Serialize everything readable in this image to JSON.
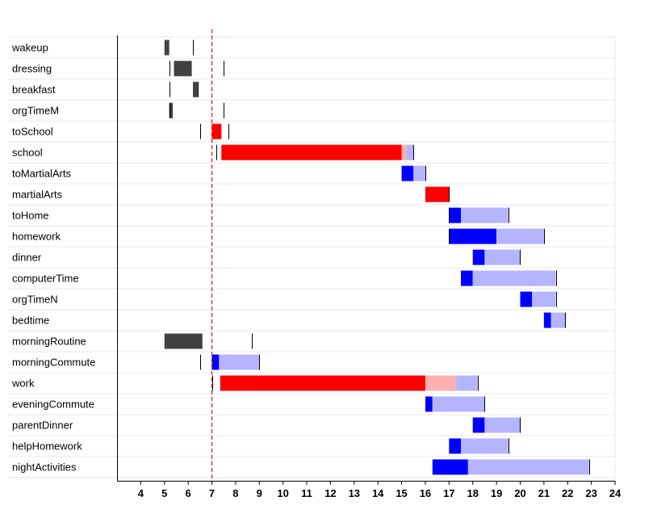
{
  "chart_data": {
    "type": "gantt-bar",
    "title": "",
    "xlabel": "",
    "ylabel": "",
    "xlim": [
      3,
      24
    ],
    "xticks": [
      4,
      5,
      6,
      7,
      8,
      9,
      10,
      11,
      12,
      13,
      14,
      15,
      16,
      17,
      18,
      19,
      20,
      21,
      22,
      23,
      24
    ],
    "reference_line": {
      "x": 7.0,
      "style": "dashed",
      "color": "#dd2222"
    },
    "colors": {
      "dark": "#404040",
      "red": "#ff0000",
      "pink": "#ffb0b0",
      "blue": "#0000ff",
      "lightblue": "#b4b4ff",
      "grid": "#e8e8ee",
      "axis": "#000000"
    },
    "rows": [
      {
        "label": "wakeup",
        "markers": [
          5.0,
          6.2
        ],
        "segments": [
          {
            "start": 5.05,
            "end": 5.2,
            "color": "dark"
          }
        ]
      },
      {
        "label": "dressing",
        "markers": [
          5.2,
          7.5
        ],
        "segments": [
          {
            "start": 5.4,
            "end": 6.15,
            "color": "dark"
          }
        ]
      },
      {
        "label": "breakfast",
        "markers": [
          5.2,
          6.4
        ],
        "segments": [
          {
            "start": 6.2,
            "end": 6.4,
            "color": "dark"
          }
        ]
      },
      {
        "label": "orgTimeM",
        "markers": [
          5.2,
          7.5
        ],
        "segments": [
          {
            "start": 5.2,
            "end": 5.35,
            "color": "dark"
          }
        ]
      },
      {
        "label": "toSchool",
        "markers": [
          6.5,
          7.7
        ],
        "segments": [
          {
            "start": 7.0,
            "end": 7.4,
            "color": "red"
          }
        ]
      },
      {
        "label": "school",
        "markers": [
          7.2,
          15.5
        ],
        "segments": [
          {
            "start": 7.4,
            "end": 15.0,
            "color": "red"
          },
          {
            "start": 15.0,
            "end": 15.2,
            "color": "pink"
          },
          {
            "start": 15.2,
            "end": 15.5,
            "color": "lightblue"
          }
        ]
      },
      {
        "label": "toMartialArts",
        "markers": [
          16.0
        ],
        "segments": [
          {
            "start": 15.0,
            "end": 15.5,
            "color": "blue"
          },
          {
            "start": 15.5,
            "end": 16.0,
            "color": "lightblue"
          }
        ]
      },
      {
        "label": "martialArts",
        "markers": [
          17.0
        ],
        "segments": [
          {
            "start": 16.0,
            "end": 17.0,
            "color": "red"
          }
        ]
      },
      {
        "label": "toHome",
        "markers": [
          17.0,
          19.5
        ],
        "segments": [
          {
            "start": 17.0,
            "end": 17.5,
            "color": "blue"
          },
          {
            "start": 17.5,
            "end": 19.5,
            "color": "lightblue"
          }
        ]
      },
      {
        "label": "homework",
        "markers": [
          17.0,
          21.0
        ],
        "segments": [
          {
            "start": 17.0,
            "end": 19.0,
            "color": "blue"
          },
          {
            "start": 19.0,
            "end": 21.0,
            "color": "lightblue"
          }
        ]
      },
      {
        "label": "dinner",
        "markers": [
          20.0
        ],
        "segments": [
          {
            "start": 18.0,
            "end": 18.5,
            "color": "blue"
          },
          {
            "start": 18.5,
            "end": 20.0,
            "color": "lightblue"
          }
        ]
      },
      {
        "label": "computerTime",
        "markers": [
          21.5
        ],
        "segments": [
          {
            "start": 17.5,
            "end": 18.0,
            "color": "blue"
          },
          {
            "start": 18.0,
            "end": 21.5,
            "color": "lightblue"
          }
        ]
      },
      {
        "label": "orgTimeN",
        "markers": [
          21.5
        ],
        "segments": [
          {
            "start": 20.0,
            "end": 20.5,
            "color": "blue"
          },
          {
            "start": 20.5,
            "end": 21.5,
            "color": "lightblue"
          }
        ]
      },
      {
        "label": "bedtime",
        "markers": [
          21.9
        ],
        "segments": [
          {
            "start": 21.0,
            "end": 21.3,
            "color": "blue"
          },
          {
            "start": 21.3,
            "end": 21.9,
            "color": "lightblue"
          }
        ]
      },
      {
        "label": "morningRoutine",
        "markers": [
          5.0,
          8.7
        ],
        "segments": [
          {
            "start": 5.05,
            "end": 6.6,
            "color": "dark"
          }
        ]
      },
      {
        "label": "morningCommute",
        "markers": [
          6.5,
          9.0
        ],
        "segments": [
          {
            "start": 7.0,
            "end": 7.3,
            "color": "blue"
          },
          {
            "start": 7.3,
            "end": 7.6,
            "color": "lightblue"
          },
          {
            "start": 7.6,
            "end": 9.0,
            "color": "lightblue"
          }
        ]
      },
      {
        "label": "work",
        "markers": [
          7.0,
          18.2
        ],
        "segments": [
          {
            "start": 7.35,
            "end": 16.0,
            "color": "red"
          },
          {
            "start": 16.0,
            "end": 17.3,
            "color": "pink"
          },
          {
            "start": 17.3,
            "end": 18.2,
            "color": "lightblue"
          }
        ]
      },
      {
        "label": "eveningCommute",
        "markers": [
          18.5
        ],
        "segments": [
          {
            "start": 16.0,
            "end": 16.3,
            "color": "blue"
          },
          {
            "start": 16.3,
            "end": 18.5,
            "color": "lightblue"
          }
        ]
      },
      {
        "label": "parentDinner",
        "markers": [
          20.0
        ],
        "segments": [
          {
            "start": 18.0,
            "end": 18.5,
            "color": "blue"
          },
          {
            "start": 18.5,
            "end": 20.0,
            "color": "lightblue"
          }
        ]
      },
      {
        "label": "helpHomework",
        "markers": [
          19.5
        ],
        "segments": [
          {
            "start": 17.0,
            "end": 17.5,
            "color": "blue"
          },
          {
            "start": 17.5,
            "end": 19.5,
            "color": "lightblue"
          }
        ]
      },
      {
        "label": "nightActivities",
        "markers": [
          22.9
        ],
        "segments": [
          {
            "start": 16.3,
            "end": 17.8,
            "color": "blue"
          },
          {
            "start": 17.8,
            "end": 22.9,
            "color": "lightblue"
          }
        ]
      }
    ]
  }
}
